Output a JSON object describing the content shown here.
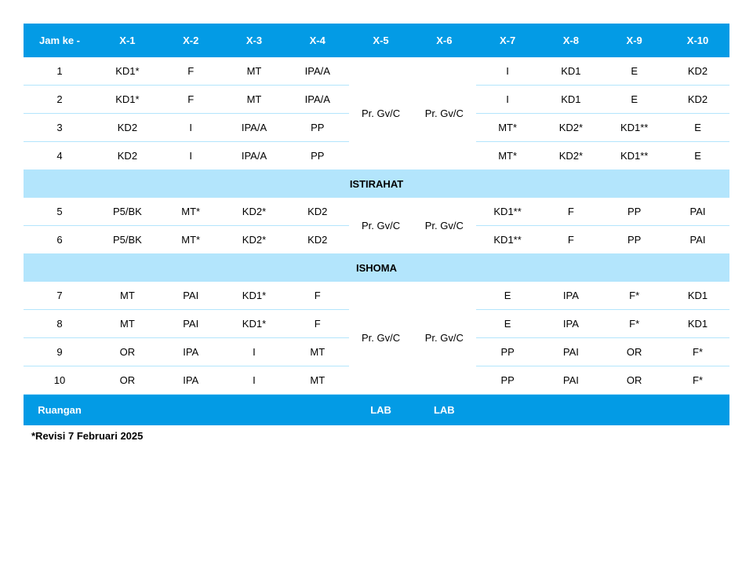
{
  "colors": {
    "header_bg": "#039BE5",
    "header_text": "#ffffff",
    "break_bg": "#B3E5FC",
    "break_text": "#000000",
    "border": "#B3E5FC",
    "body_text": "#000000",
    "background": "#ffffff"
  },
  "typography": {
    "font_family": "Arial, sans-serif",
    "body_fontsize": 13,
    "header_fontweight": "bold"
  },
  "header": [
    "Jam ke -",
    "X-1",
    "X-2",
    "X-3",
    "X-4",
    "X-5",
    "X-6",
    "X-7",
    "X-8",
    "X-9",
    "X-10"
  ],
  "block1": {
    "merged_col5": "Pr. Gv/C",
    "merged_col6": "Pr. Gv/C",
    "rows": [
      {
        "period": "1",
        "cells": [
          "KD1*",
          "F",
          "MT",
          "IPA/A",
          null,
          null,
          "I",
          "KD1",
          "E",
          "KD2"
        ]
      },
      {
        "period": "2",
        "cells": [
          "KD1*",
          "F",
          "MT",
          "IPA/A",
          null,
          null,
          "I",
          "KD1",
          "E",
          "KD2"
        ]
      },
      {
        "period": "3",
        "cells": [
          "KD2",
          "I",
          "IPA/A",
          "PP",
          null,
          null,
          "MT*",
          "KD2*",
          "KD1**",
          "E"
        ]
      },
      {
        "period": "4",
        "cells": [
          "KD2",
          "I",
          "IPA/A",
          "PP",
          null,
          null,
          "MT*",
          "KD2*",
          "KD1**",
          "E"
        ]
      }
    ]
  },
  "break1": "ISTIRAHAT",
  "block2": {
    "merged_col5": "Pr. Gv/C",
    "merged_col6": "Pr. Gv/C",
    "rows": [
      {
        "period": "5",
        "cells": [
          "P5/BK",
          "MT*",
          "KD2*",
          "KD2",
          null,
          null,
          "KD1**",
          "F",
          "PP",
          "PAI"
        ]
      },
      {
        "period": "6",
        "cells": [
          "P5/BK",
          "MT*",
          "KD2*",
          "KD2",
          null,
          null,
          "KD1**",
          "F",
          "PP",
          "PAI"
        ]
      }
    ]
  },
  "break2": "ISHOMA",
  "block3": {
    "merged_col5": "Pr. Gv/C",
    "merged_col6": "Pr. Gv/C",
    "rows": [
      {
        "period": "7",
        "cells": [
          "MT",
          "PAI",
          "KD1*",
          "F",
          null,
          null,
          "E",
          "IPA",
          "F*",
          "KD1"
        ]
      },
      {
        "period": "8",
        "cells": [
          "MT",
          "PAI",
          "KD1*",
          "F",
          null,
          null,
          "E",
          "IPA",
          "F*",
          "KD1"
        ]
      },
      {
        "period": "9",
        "cells": [
          "OR",
          "IPA",
          "I",
          "MT",
          null,
          null,
          "PP",
          "PAI",
          "OR",
          "F*"
        ]
      },
      {
        "period": "10",
        "cells": [
          "OR",
          "IPA",
          "I",
          "MT",
          null,
          null,
          "PP",
          "PAI",
          "OR",
          "F*"
        ]
      }
    ]
  },
  "footer": {
    "label": "Ruangan",
    "cells": [
      "",
      "",
      "",
      "",
      "LAB",
      "LAB",
      "",
      "",
      "",
      ""
    ]
  },
  "footnote": "*Revisi 7 Februari 2025"
}
